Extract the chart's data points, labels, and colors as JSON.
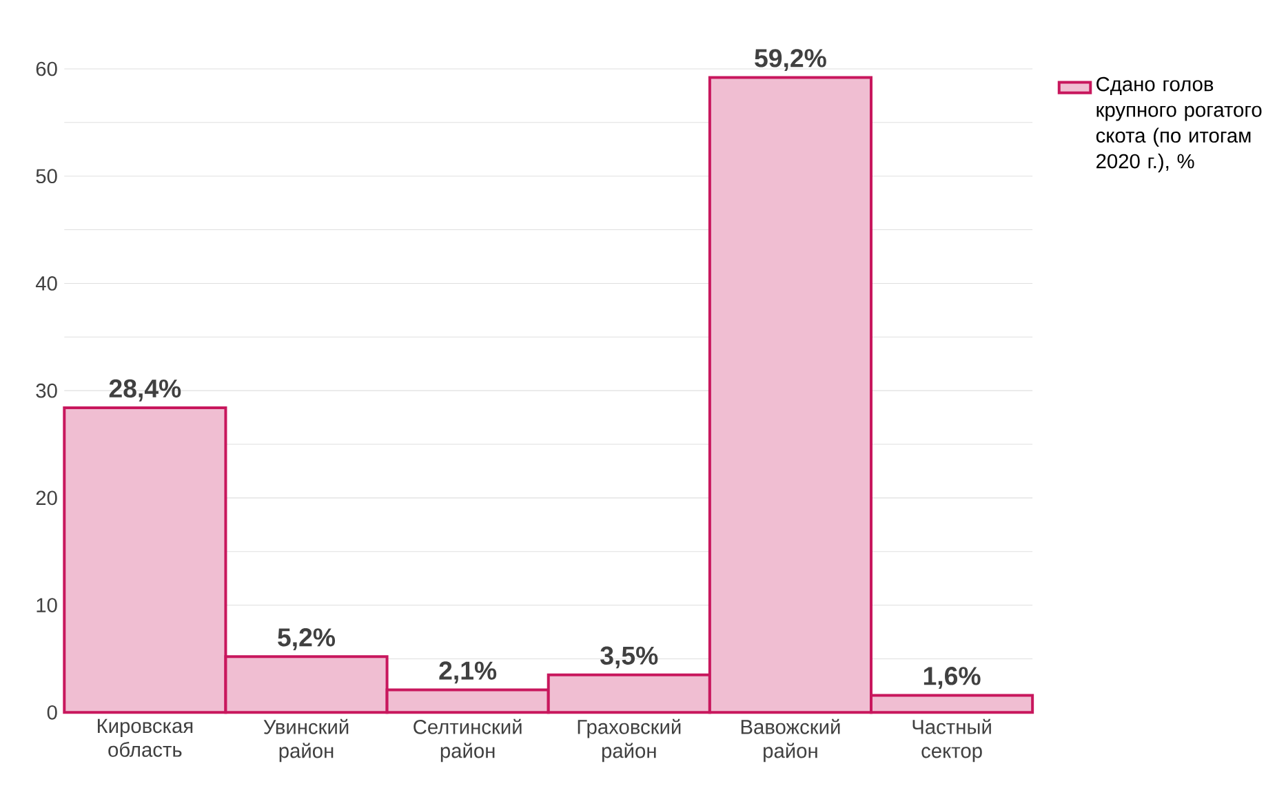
{
  "chart_data": {
    "type": "bar",
    "categories": [
      "Кировская область",
      "Увинский район",
      "Селтинский район",
      "Граховский район",
      "Вавожский район",
      "Частный сектор"
    ],
    "series": [
      {
        "name": "Сдано голов крупного рогатого скота (по итогам 2020 г.), %",
        "color": "#c8175d",
        "values": [
          28.4,
          5.2,
          2.1,
          3.5,
          59.2,
          1.6
        ],
        "value_labels": [
          "28,4%",
          "5,2%",
          "2,1%",
          "3,5%",
          "59,2%",
          "1,6%"
        ]
      }
    ],
    "ylim": [
      0,
      60
    ],
    "yticks": [
      0,
      {
        "value": 5,
        "label": null
      },
      10,
      {
        "value": 15,
        "label": null
      },
      20,
      {
        "value": 25,
        "label": null
      },
      30,
      {
        "value": 35,
        "label": null
      },
      40,
      {
        "value": 45,
        "label": null
      },
      50,
      {
        "value": 55,
        "label": null
      },
      60
    ],
    "grid": "y",
    "legend": "top right"
  }
}
